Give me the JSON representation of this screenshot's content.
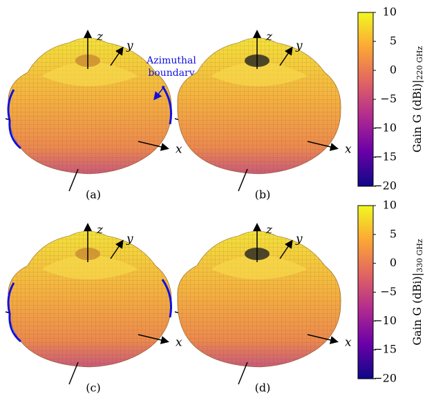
{
  "panels": [
    {
      "label": "(a)",
      "axes": [
        "z",
        "y",
        "x"
      ],
      "annotation": [
        "Azimuthal",
        "boundary"
      ]
    },
    {
      "label": "(b)",
      "axes": [
        "z",
        "y",
        "x"
      ]
    },
    {
      "label": "(c)",
      "axes": [
        "z",
        "y",
        "x"
      ]
    },
    {
      "label": "(d)",
      "axes": [
        "z",
        "y",
        "x"
      ]
    }
  ],
  "colorbars": [
    {
      "label": "Gain G (dBi)",
      "subscript": "220 GHz",
      "lim": [
        -20,
        10
      ],
      "ticks": [
        {
          "value": 10,
          "label": "10"
        },
        {
          "value": 5,
          "label": "5"
        },
        {
          "value": 0,
          "label": "0"
        },
        {
          "value": -5,
          "label": "−5"
        },
        {
          "value": -10,
          "label": "−10"
        },
        {
          "value": -15,
          "label": "−15"
        },
        {
          "value": -20,
          "label": "−20"
        }
      ]
    },
    {
      "label": "Gain G (dBi)",
      "subscript": "330 GHz",
      "lim": [
        -20,
        10
      ],
      "ticks": [
        {
          "value": 10,
          "label": "10"
        },
        {
          "value": 5,
          "label": "5"
        },
        {
          "value": 0,
          "label": "0"
        },
        {
          "value": -5,
          "label": "−5"
        },
        {
          "value": -10,
          "label": "−10"
        },
        {
          "value": -15,
          "label": "−15"
        },
        {
          "value": -20,
          "label": "−20"
        }
      ]
    }
  ],
  "colormap": [
    "#0d0887",
    "#6a00a8",
    "#b12a90",
    "#e16462",
    "#fca636",
    "#f0f921"
  ]
}
